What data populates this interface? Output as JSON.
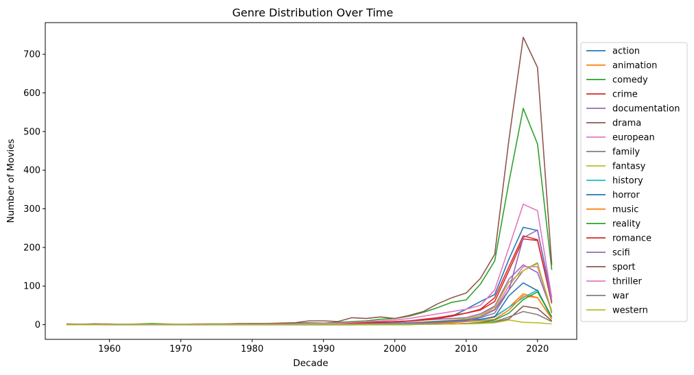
{
  "chart_data": {
    "type": "line",
    "title": "Genre Distribution Over Time",
    "xlabel": "Decade",
    "ylabel": "Number of Movies",
    "xlim": [
      1951,
      2025.5
    ],
    "ylim": [
      -38,
      782
    ],
    "xticks": [
      1960,
      1970,
      1980,
      1990,
      2000,
      2010,
      2020
    ],
    "yticks": [
      0,
      100,
      200,
      300,
      400,
      500,
      600,
      700
    ],
    "legend_position": "right-outside",
    "grid": false,
    "x": [
      1954,
      1956,
      1958,
      1960,
      1962,
      1964,
      1966,
      1968,
      1970,
      1972,
      1974,
      1976,
      1978,
      1980,
      1982,
      1984,
      1986,
      1988,
      1990,
      1992,
      1994,
      1996,
      1998,
      2000,
      2002,
      2004,
      2006,
      2008,
      2010,
      2012,
      2014,
      2016,
      2018,
      2020,
      2022
    ],
    "series": [
      {
        "name": "action",
        "color": "#1f77b4",
        "values": [
          1,
          1,
          1,
          1,
          1,
          1,
          1,
          1,
          1,
          1,
          1,
          1,
          1,
          1,
          2,
          2,
          2,
          3,
          3,
          4,
          4,
          5,
          5,
          6,
          9,
          12,
          16,
          22,
          40,
          60,
          78,
          170,
          252,
          244,
          70
        ]
      },
      {
        "name": "animation",
        "color": "#ff7f0e",
        "values": [
          0,
          0,
          0,
          0,
          0,
          0,
          0,
          0,
          0,
          0,
          0,
          0,
          0,
          0,
          0,
          0,
          0,
          0,
          1,
          1,
          1,
          1,
          1,
          1,
          2,
          3,
          4,
          5,
          8,
          12,
          22,
          45,
          80,
          70,
          15
        ]
      },
      {
        "name": "comedy",
        "color": "#2ca02c",
        "values": [
          1,
          1,
          2,
          1,
          1,
          2,
          3,
          2,
          1,
          1,
          2,
          2,
          2,
          3,
          3,
          3,
          4,
          5,
          4,
          6,
          8,
          10,
          14,
          16,
          22,
          32,
          44,
          58,
          64,
          105,
          165,
          370,
          560,
          468,
          142
        ]
      },
      {
        "name": "crime",
        "color": "#d62728",
        "values": [
          1,
          0,
          1,
          1,
          1,
          1,
          1,
          1,
          1,
          1,
          1,
          1,
          1,
          2,
          2,
          2,
          2,
          3,
          3,
          3,
          4,
          6,
          7,
          8,
          10,
          14,
          18,
          24,
          30,
          38,
          60,
          140,
          222,
          218,
          60
        ]
      },
      {
        "name": "documentation",
        "color": "#9467bd",
        "values": [
          0,
          0,
          0,
          0,
          0,
          0,
          0,
          0,
          0,
          0,
          0,
          0,
          0,
          0,
          0,
          0,
          0,
          1,
          2,
          3,
          4,
          5,
          6,
          8,
          10,
          12,
          14,
          16,
          18,
          28,
          48,
          118,
          155,
          135,
          35
        ]
      },
      {
        "name": "drama",
        "color": "#8c564b",
        "values": [
          2,
          1,
          2,
          2,
          1,
          1,
          1,
          1,
          1,
          2,
          2,
          2,
          3,
          3,
          3,
          4,
          5,
          10,
          10,
          8,
          18,
          16,
          20,
          16,
          24,
          34,
          54,
          70,
          82,
          120,
          182,
          480,
          744,
          666,
          155
        ]
      },
      {
        "name": "european",
        "color": "#e377c2",
        "values": [
          0,
          0,
          0,
          0,
          0,
          0,
          0,
          0,
          0,
          0,
          0,
          0,
          0,
          0,
          0,
          0,
          0,
          1,
          1,
          1,
          1,
          2,
          2,
          2,
          4,
          6,
          8,
          10,
          14,
          24,
          40,
          100,
          150,
          150,
          35
        ]
      },
      {
        "name": "family",
        "color": "#7f7f7f",
        "values": [
          0,
          0,
          0,
          0,
          0,
          0,
          0,
          0,
          0,
          0,
          0,
          0,
          0,
          0,
          0,
          1,
          1,
          1,
          1,
          1,
          2,
          2,
          3,
          3,
          4,
          5,
          7,
          9,
          12,
          20,
          38,
          90,
          140,
          160,
          30
        ]
      },
      {
        "name": "fantasy",
        "color": "#bcbd22",
        "values": [
          0,
          0,
          0,
          0,
          0,
          0,
          0,
          0,
          0,
          0,
          0,
          0,
          0,
          0,
          1,
          1,
          1,
          1,
          1,
          2,
          2,
          3,
          3,
          4,
          5,
          7,
          9,
          12,
          15,
          24,
          45,
          110,
          140,
          158,
          35
        ]
      },
      {
        "name": "history",
        "color": "#17becf",
        "values": [
          0,
          0,
          0,
          0,
          0,
          0,
          0,
          0,
          0,
          0,
          0,
          0,
          0,
          0,
          0,
          0,
          0,
          0,
          0,
          1,
          1,
          1,
          2,
          2,
          3,
          4,
          5,
          6,
          8,
          12,
          20,
          45,
          70,
          90,
          15
        ]
      },
      {
        "name": "horror",
        "color": "#1f77b4",
        "values": [
          0,
          0,
          0,
          0,
          0,
          0,
          0,
          0,
          0,
          0,
          0,
          0,
          0,
          0,
          0,
          0,
          1,
          1,
          1,
          1,
          2,
          2,
          3,
          3,
          5,
          6,
          8,
          10,
          12,
          14,
          20,
          75,
          108,
          88,
          20
        ]
      },
      {
        "name": "music",
        "color": "#ff7f0e",
        "values": [
          0,
          0,
          0,
          0,
          0,
          0,
          0,
          0,
          0,
          0,
          0,
          0,
          0,
          0,
          0,
          0,
          0,
          1,
          1,
          1,
          1,
          1,
          2,
          2,
          3,
          4,
          5,
          6,
          8,
          10,
          14,
          38,
          75,
          70,
          15
        ]
      },
      {
        "name": "reality",
        "color": "#2ca02c",
        "values": [
          0,
          0,
          0,
          0,
          0,
          0,
          0,
          0,
          0,
          0,
          0,
          0,
          0,
          0,
          0,
          0,
          0,
          0,
          0,
          0,
          0,
          0,
          0,
          0,
          0,
          1,
          1,
          2,
          3,
          6,
          12,
          30,
          65,
          85,
          20
        ]
      },
      {
        "name": "romance",
        "color": "#d62728",
        "values": [
          0,
          0,
          0,
          0,
          0,
          0,
          0,
          0,
          0,
          0,
          0,
          0,
          0,
          1,
          1,
          1,
          1,
          2,
          2,
          3,
          4,
          5,
          6,
          7,
          9,
          12,
          16,
          22,
          30,
          40,
          70,
          150,
          230,
          220,
          55
        ]
      },
      {
        "name": "scifi",
        "color": "#9467bd",
        "values": [
          0,
          0,
          0,
          0,
          0,
          0,
          0,
          0,
          0,
          0,
          0,
          0,
          0,
          0,
          0,
          0,
          0,
          0,
          1,
          1,
          1,
          2,
          2,
          3,
          4,
          5,
          6,
          8,
          10,
          18,
          30,
          90,
          225,
          245,
          60
        ]
      },
      {
        "name": "sport",
        "color": "#8c564b",
        "values": [
          0,
          0,
          0,
          0,
          0,
          0,
          0,
          0,
          0,
          0,
          0,
          0,
          0,
          0,
          0,
          0,
          0,
          0,
          0,
          0,
          0,
          1,
          1,
          1,
          1,
          2,
          2,
          2,
          3,
          4,
          6,
          15,
          48,
          42,
          10
        ]
      },
      {
        "name": "thriller",
        "color": "#e377c2",
        "values": [
          0,
          0,
          0,
          0,
          0,
          0,
          0,
          0,
          0,
          0,
          0,
          0,
          1,
          1,
          1,
          1,
          2,
          3,
          3,
          4,
          6,
          8,
          10,
          12,
          16,
          22,
          28,
          34,
          40,
          50,
          90,
          200,
          312,
          295,
          70
        ]
      },
      {
        "name": "war",
        "color": "#7f7f7f",
        "values": [
          0,
          0,
          0,
          0,
          0,
          0,
          0,
          0,
          0,
          0,
          0,
          0,
          0,
          0,
          0,
          0,
          0,
          0,
          1,
          1,
          1,
          1,
          1,
          1,
          1,
          1,
          2,
          2,
          3,
          4,
          8,
          20,
          34,
          26,
          8
        ]
      },
      {
        "name": "western",
        "color": "#bcbd22",
        "values": [
          0,
          0,
          0,
          1,
          1,
          1,
          1,
          1,
          1,
          1,
          1,
          1,
          1,
          1,
          1,
          1,
          1,
          1,
          1,
          1,
          1,
          1,
          1,
          1,
          1,
          1,
          1,
          2,
          2,
          3,
          5,
          12,
          6,
          5,
          2
        ]
      }
    ]
  }
}
